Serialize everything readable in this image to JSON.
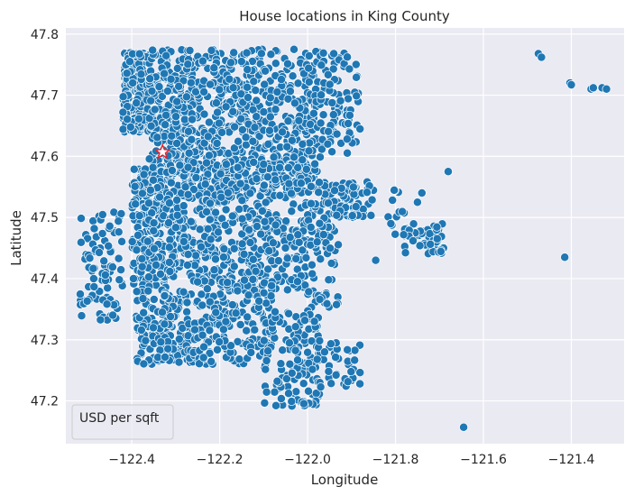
{
  "chart_data": {
    "type": "scatter",
    "title": "House locations in King County",
    "xlabel": "Longitude",
    "ylabel": "Latitude",
    "xlim": [
      -122.55,
      -121.28
    ],
    "ylim": [
      47.13,
      47.81
    ],
    "xticks": [
      -122.4,
      -122.2,
      -122.0,
      -121.8,
      -121.6,
      -121.4
    ],
    "xtick_labels": [
      "−122.4",
      "−122.2",
      "−122.0",
      "−121.8",
      "−121.6",
      "−121.4"
    ],
    "yticks": [
      47.2,
      47.3,
      47.4,
      47.5,
      47.6,
      47.7,
      47.8
    ],
    "ytick_labels": [
      "47.2",
      "47.3",
      "47.4",
      "47.5",
      "47.6",
      "47.7",
      "47.8"
    ],
    "grid": true,
    "legend": {
      "title": "USD per sqft",
      "placement": "lower-left"
    },
    "colors": {
      "points": "#1f77b4",
      "background": "#eaeaf2",
      "highlight": "#e8202a"
    },
    "highlight": {
      "marker": "star",
      "x": -122.33,
      "y": 47.607
    },
    "clusters": [
      {
        "x": [
          -122.42,
          -122.36
        ],
        "y": [
          47.64,
          47.77
        ],
        "n": 250
      },
      {
        "x": [
          -122.36,
          -122.24
        ],
        "y": [
          47.56,
          47.775
        ],
        "n": 320
      },
      {
        "x": [
          -122.24,
          -122.1
        ],
        "y": [
          47.54,
          47.775
        ],
        "n": 280
      },
      {
        "x": [
          -122.1,
          -121.97
        ],
        "y": [
          47.54,
          47.775
        ],
        "n": 260
      },
      {
        "x": [
          -121.97,
          -121.88
        ],
        "y": [
          47.6,
          47.77
        ],
        "n": 80
      },
      {
        "x": [
          -122.4,
          -122.32
        ],
        "y": [
          47.38,
          47.58
        ],
        "n": 220
      },
      {
        "x": [
          -122.32,
          -122.2
        ],
        "y": [
          47.4,
          47.59
        ],
        "n": 220
      },
      {
        "x": [
          -122.2,
          -122.0
        ],
        "y": [
          47.38,
          47.6
        ],
        "n": 320
      },
      {
        "x": [
          -122.0,
          -121.85
        ],
        "y": [
          47.5,
          47.56
        ],
        "n": 90
      },
      {
        "x": [
          -122.0,
          -121.93
        ],
        "y": [
          47.35,
          47.5
        ],
        "n": 60
      },
      {
        "x": [
          -122.52,
          -122.42
        ],
        "y": [
          47.33,
          47.51
        ],
        "n": 90
      },
      {
        "x": [
          -122.39,
          -122.26
        ],
        "y": [
          47.26,
          47.38
        ],
        "n": 170
      },
      {
        "x": [
          -122.26,
          -122.08
        ],
        "y": [
          47.26,
          47.4
        ],
        "n": 190
      },
      {
        "x": [
          -122.1,
          -121.97
        ],
        "y": [
          47.19,
          47.35
        ],
        "n": 140
      },
      {
        "x": [
          -121.98,
          -121.88
        ],
        "y": [
          47.22,
          47.3
        ],
        "n": 40
      },
      {
        "x": [
          -121.78,
          -121.69
        ],
        "y": [
          47.44,
          47.49
        ],
        "n": 50
      },
      {
        "x": [
          -121.82,
          -121.78
        ],
        "y": [
          47.47,
          47.55
        ],
        "n": 14
      }
    ],
    "outliers": [
      {
        "x": -121.475,
        "y": 47.768
      },
      {
        "x": -121.468,
        "y": 47.762
      },
      {
        "x": -121.403,
        "y": 47.72
      },
      {
        "x": -121.4,
        "y": 47.717
      },
      {
        "x": -121.355,
        "y": 47.71
      },
      {
        "x": -121.35,
        "y": 47.712
      },
      {
        "x": -121.33,
        "y": 47.712
      },
      {
        "x": -121.32,
        "y": 47.71
      },
      {
        "x": -121.415,
        "y": 47.435
      },
      {
        "x": -121.645,
        "y": 47.157
      },
      {
        "x": -121.68,
        "y": 47.575
      },
      {
        "x": -121.845,
        "y": 47.43
      },
      {
        "x": -121.74,
        "y": 47.54
      },
      {
        "x": -121.75,
        "y": 47.525
      }
    ]
  }
}
